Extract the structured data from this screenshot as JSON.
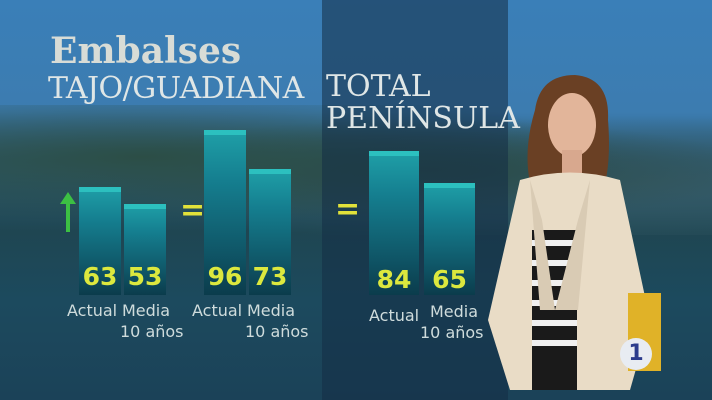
{
  "chart_data": {
    "type": "bar",
    "title": "Embalses",
    "groups": [
      {
        "name": "TAJO/GUADIANA",
        "trend": "up-arrow",
        "categories": [
          "Actual",
          "Media 10 años"
        ],
        "values": [
          63,
          53
        ]
      },
      {
        "name": "",
        "trend": "equal",
        "categories": [
          "Actual",
          "Media 10 años"
        ],
        "values": [
          96,
          73
        ]
      },
      {
        "name": "TOTAL PENÍNSULA",
        "trend": "equal",
        "categories": [
          "Actual",
          "Media 10 años"
        ],
        "values": [
          84,
          65
        ]
      }
    ],
    "colors": {
      "bar": "#157f90",
      "value": "#dce83e",
      "up_arrow": "#3cc043",
      "equal": "#e2e23a"
    }
  },
  "labels": {
    "actual": "Actual",
    "media": "Media",
    "anos": "10 años",
    "eq": "="
  },
  "logo": "1"
}
